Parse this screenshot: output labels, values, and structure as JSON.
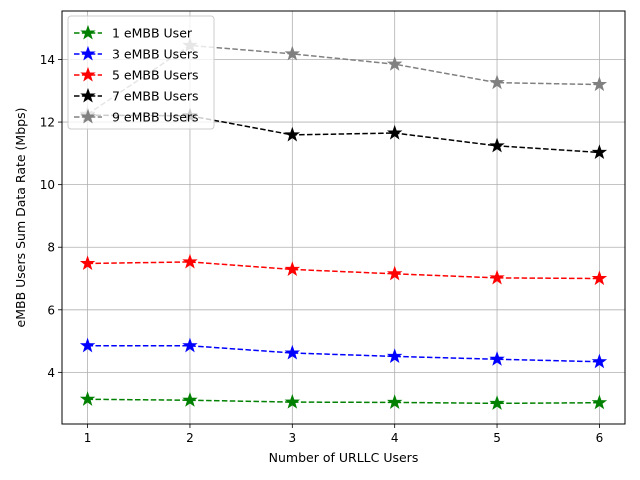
{
  "chart_data": {
    "type": "line",
    "title": "",
    "xlabel": "Number of URLLC Users",
    "ylabel": "eMBB Users Sum Data Rate (Mbps)",
    "x": [
      1,
      2,
      3,
      4,
      5,
      6
    ],
    "xlim": [
      0.75,
      6.25
    ],
    "ylim": [
      2.35,
      15.55
    ],
    "xticks": [
      "1",
      "2",
      "3",
      "4",
      "5",
      "6"
    ],
    "yticks": [
      4,
      6,
      8,
      10,
      12,
      14
    ],
    "ytick_labels": [
      "4",
      "6",
      "8",
      "10",
      "12",
      "14"
    ],
    "grid": true,
    "legend_position": "top-left",
    "series": [
      {
        "name": "1 eMBB User",
        "color": "#008000",
        "values": [
          3.14,
          3.11,
          3.05,
          3.04,
          3.01,
          3.03
        ]
      },
      {
        "name": "3 eMBB Users",
        "color": "#0000ff",
        "values": [
          4.85,
          4.85,
          4.62,
          4.51,
          4.42,
          4.34
        ]
      },
      {
        "name": "5 eMBB Users",
        "color": "#ff0000",
        "values": [
          7.48,
          7.53,
          7.29,
          7.15,
          7.02,
          7.0
        ]
      },
      {
        "name": "7 eMBB Users",
        "color": "#000000",
        "values": [
          12.22,
          12.2,
          11.59,
          11.65,
          11.24,
          11.03
        ]
      },
      {
        "name": "9 eMBB Users",
        "color": "#808080",
        "values": [
          12.25,
          14.45,
          14.18,
          13.85,
          13.26,
          13.2
        ]
      }
    ]
  }
}
